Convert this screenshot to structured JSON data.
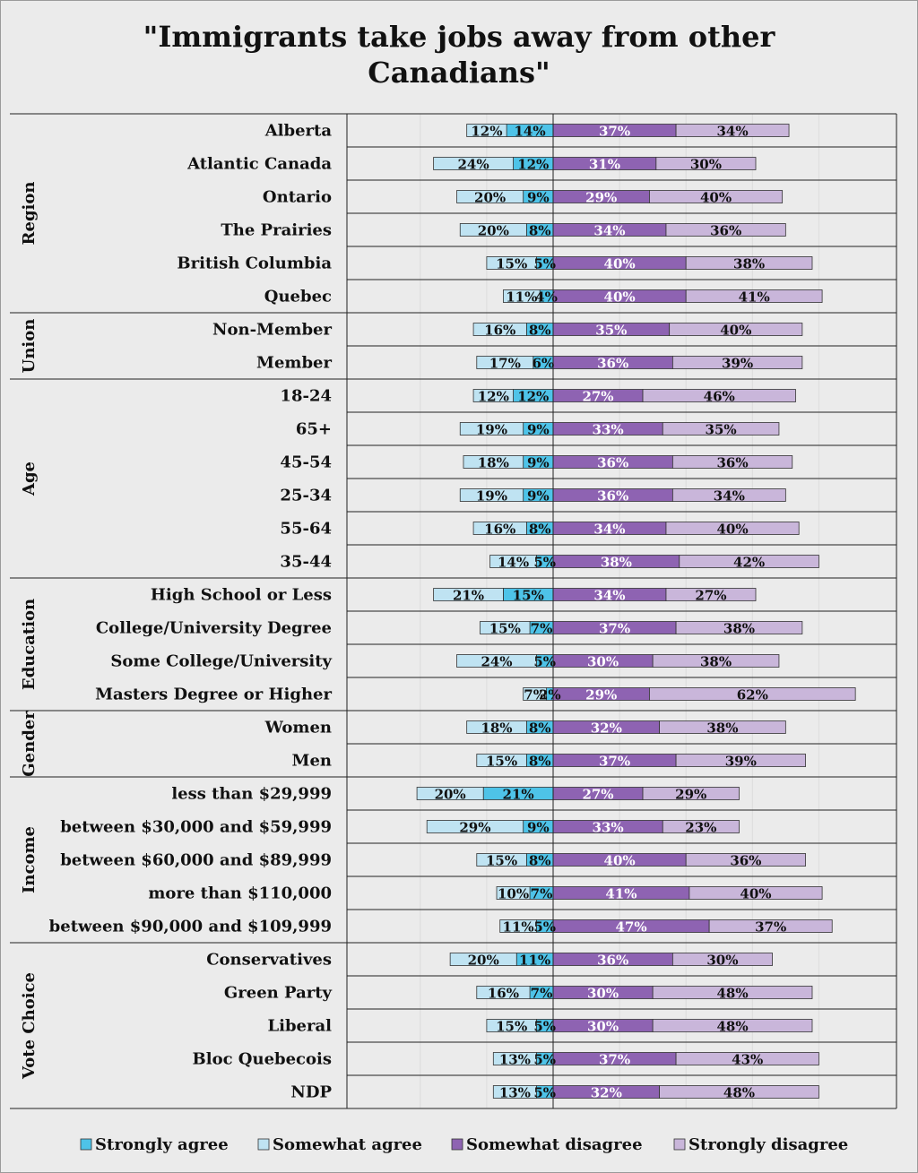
{
  "chart_data": {
    "type": "bar",
    "orientation": "horizontal",
    "stacked": "diverging",
    "title": "\"Immigrants take jobs away from other Canadians\"",
    "xlabel": "",
    "ylabel": "",
    "legend_position": "bottom",
    "series": [
      {
        "name": "Strongly agree",
        "color": "#4ec3e8"
      },
      {
        "name": "Somewhat agree",
        "color": "#bfe3f2"
      },
      {
        "name": "Somewhat disagree",
        "color": "#8e63b2"
      },
      {
        "name": "Strongly disagree",
        "color": "#c9b6da"
      }
    ],
    "groups": [
      {
        "name": "Region",
        "rows": [
          {
            "label": "Alberta",
            "values": [
              14,
              12,
              37,
              34
            ]
          },
          {
            "label": "Atlantic Canada",
            "values": [
              12,
              24,
              31,
              30
            ]
          },
          {
            "label": "Ontario",
            "values": [
              9,
              20,
              29,
              40
            ]
          },
          {
            "label": "The Prairies",
            "values": [
              8,
              20,
              34,
              36
            ]
          },
          {
            "label": "British Columbia",
            "values": [
              5,
              15,
              40,
              38
            ]
          },
          {
            "label": "Quebec",
            "values": [
              4,
              11,
              40,
              41
            ]
          }
        ]
      },
      {
        "name": "Union",
        "rows": [
          {
            "label": "Non-Member",
            "values": [
              8,
              16,
              35,
              40
            ]
          },
          {
            "label": "Member",
            "values": [
              6,
              17,
              36,
              39
            ]
          }
        ]
      },
      {
        "name": "Age",
        "rows": [
          {
            "label": "18-24",
            "values": [
              12,
              12,
              27,
              46
            ]
          },
          {
            "label": "65+",
            "values": [
              9,
              19,
              33,
              35
            ]
          },
          {
            "label": "45-54",
            "values": [
              9,
              18,
              36,
              36
            ]
          },
          {
            "label": "25-34",
            "values": [
              9,
              19,
              36,
              34
            ]
          },
          {
            "label": "55-64",
            "values": [
              8,
              16,
              34,
              40
            ]
          },
          {
            "label": "35-44",
            "values": [
              5,
              14,
              38,
              42
            ]
          }
        ]
      },
      {
        "name": "Education",
        "rows": [
          {
            "label": "High School or Less",
            "values": [
              15,
              21,
              34,
              27
            ]
          },
          {
            "label": "College/University Degree",
            "values": [
              7,
              15,
              37,
              38
            ]
          },
          {
            "label": "Some College/University",
            "values": [
              5,
              24,
              30,
              38
            ]
          },
          {
            "label": "Masters Degree or Higher",
            "values": [
              2,
              7,
              29,
              62
            ]
          }
        ]
      },
      {
        "name": "Gender",
        "rows": [
          {
            "label": "Women",
            "values": [
              8,
              18,
              32,
              38
            ]
          },
          {
            "label": "Men",
            "values": [
              8,
              15,
              37,
              39
            ]
          }
        ]
      },
      {
        "name": "Income",
        "rows": [
          {
            "label": "less than $29,999",
            "values": [
              21,
              20,
              27,
              29
            ]
          },
          {
            "label": "between $30,000 and $59,999",
            "values": [
              9,
              29,
              33,
              23
            ]
          },
          {
            "label": "between $60,000 and $89,999",
            "values": [
              8,
              15,
              40,
              36
            ]
          },
          {
            "label": "more than $110,000",
            "values": [
              7,
              10,
              41,
              40
            ]
          },
          {
            "label": "between $90,000 and $109,999",
            "values": [
              5,
              11,
              47,
              37
            ]
          }
        ]
      },
      {
        "name": "Vote Choice",
        "rows": [
          {
            "label": "Conservatives",
            "values": [
              11,
              20,
              36,
              30
            ]
          },
          {
            "label": "Green Party",
            "values": [
              7,
              16,
              30,
              48
            ]
          },
          {
            "label": "Liberal",
            "values": [
              5,
              15,
              30,
              48
            ]
          },
          {
            "label": "Bloc Quebecois",
            "values": [
              5,
              13,
              37,
              43
            ]
          },
          {
            "label": "NDP",
            "values": [
              5,
              13,
              32,
              48
            ]
          }
        ]
      }
    ]
  }
}
